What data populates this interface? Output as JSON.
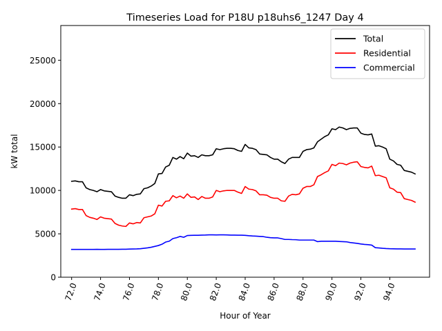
{
  "chart_data": {
    "type": "line",
    "title": "Timeseries Load for P18U p18uhs6_1247  Day 4",
    "xlabel": "Hour of Year",
    "ylabel": "kW total",
    "xlim": [
      71.25,
      96.75
    ],
    "ylim": [
      0,
      29000
    ],
    "grid": false,
    "legend_position": "top-right",
    "x_ticks": [
      72,
      74,
      76,
      78,
      80,
      82,
      84,
      86,
      88,
      90,
      92,
      94
    ],
    "x_tick_labels": [
      "72.0",
      "74.0",
      "76.0",
      "78.0",
      "80.0",
      "82.0",
      "84.0",
      "86.0",
      "88.0",
      "90.0",
      "92.0",
      "94.0"
    ],
    "y_ticks": [
      0,
      5000,
      10000,
      15000,
      20000,
      25000
    ],
    "y_tick_labels": [
      "0",
      "5000",
      "10000",
      "15000",
      "20000",
      "25000"
    ],
    "x": [
      72.0,
      72.25,
      72.5,
      72.75,
      73.0,
      73.25,
      73.5,
      73.75,
      74.0,
      74.25,
      74.5,
      74.75,
      75.0,
      75.25,
      75.5,
      75.75,
      76.0,
      76.25,
      76.5,
      76.75,
      77.0,
      77.25,
      77.5,
      77.75,
      78.0,
      78.25,
      78.5,
      78.75,
      79.0,
      79.25,
      79.5,
      79.75,
      80.0,
      80.25,
      80.5,
      80.75,
      81.0,
      81.25,
      81.5,
      81.75,
      82.0,
      82.25,
      82.5,
      82.75,
      83.0,
      83.25,
      83.5,
      83.75,
      84.0,
      84.25,
      84.5,
      84.75,
      85.0,
      85.25,
      85.5,
      85.75,
      86.0,
      86.25,
      86.5,
      86.75,
      87.0,
      87.25,
      87.5,
      87.75,
      88.0,
      88.25,
      88.5,
      88.75,
      89.0,
      89.25,
      89.5,
      89.75,
      90.0,
      90.25,
      90.5,
      90.75,
      91.0,
      91.25,
      91.5,
      91.75,
      92.0,
      92.25,
      92.5,
      92.75,
      93.0,
      93.25,
      93.5,
      93.75,
      94.0,
      94.25,
      94.5,
      94.75,
      95.0,
      95.25,
      95.5,
      95.75
    ],
    "series": [
      {
        "name": "Total",
        "color": "#000000",
        "values": [
          11050,
          11100,
          11000,
          11000,
          10300,
          10100,
          10000,
          9850,
          10100,
          9950,
          9900,
          9850,
          9350,
          9200,
          9100,
          9100,
          9500,
          9400,
          9550,
          9600,
          10200,
          10300,
          10500,
          10800,
          11900,
          11950,
          12700,
          12900,
          13800,
          13600,
          13900,
          13650,
          14300,
          13950,
          14000,
          13800,
          14100,
          14000,
          14000,
          14100,
          14800,
          14700,
          14800,
          14850,
          14850,
          14800,
          14600,
          14500,
          15300,
          14900,
          14850,
          14700,
          14200,
          14150,
          14100,
          13800,
          13600,
          13600,
          13300,
          13100,
          13600,
          13800,
          13800,
          13800,
          14500,
          14700,
          14750,
          14900,
          15600,
          15900,
          16200,
          16400,
          17100,
          17000,
          17300,
          17200,
          17000,
          17150,
          17200,
          17200,
          16600,
          16450,
          16400,
          16500,
          15100,
          15150,
          15000,
          14800,
          13600,
          13400,
          13000,
          12900,
          12300,
          12200,
          12100,
          11900
        ]
      },
      {
        "name": "Residential",
        "color": "#ff0000",
        "values": [
          7850,
          7900,
          7800,
          7800,
          7100,
          6900,
          6800,
          6650,
          6950,
          6800,
          6750,
          6700,
          6200,
          6000,
          5900,
          5850,
          6250,
          6150,
          6300,
          6250,
          6850,
          6950,
          7050,
          7300,
          8300,
          8200,
          8750,
          8800,
          9400,
          9150,
          9350,
          9100,
          9600,
          9200,
          9250,
          8950,
          9300,
          9100,
          9100,
          9250,
          10000,
          9850,
          9950,
          10000,
          10000,
          10000,
          9800,
          9650,
          10450,
          10150,
          10100,
          9950,
          9500,
          9500,
          9450,
          9200,
          9100,
          9100,
          8800,
          8750,
          9350,
          9550,
          9500,
          9600,
          10250,
          10450,
          10450,
          10650,
          11600,
          11800,
          12050,
          12250,
          13000,
          12850,
          13150,
          13100,
          12950,
          13150,
          13250,
          13300,
          12750,
          12650,
          12600,
          12800,
          11700,
          11750,
          11600,
          11450,
          10300,
          10150,
          9800,
          9750,
          9050,
          8950,
          8850,
          8650
        ]
      },
      {
        "name": "Commercial",
        "color": "#0000ff",
        "values": [
          3200,
          3200,
          3200,
          3200,
          3200,
          3200,
          3200,
          3210,
          3200,
          3200,
          3210,
          3210,
          3210,
          3210,
          3220,
          3220,
          3240,
          3250,
          3260,
          3280,
          3330,
          3380,
          3450,
          3550,
          3650,
          3800,
          4050,
          4150,
          4450,
          4550,
          4700,
          4600,
          4800,
          4820,
          4830,
          4830,
          4850,
          4860,
          4880,
          4880,
          4870,
          4880,
          4880,
          4870,
          4850,
          4850,
          4840,
          4840,
          4820,
          4780,
          4750,
          4730,
          4700,
          4680,
          4600,
          4550,
          4530,
          4530,
          4450,
          4350,
          4350,
          4330,
          4320,
          4280,
          4280,
          4280,
          4280,
          4280,
          4100,
          4150,
          4150,
          4150,
          4150,
          4150,
          4120,
          4100,
          4080,
          4000,
          3950,
          3900,
          3830,
          3780,
          3750,
          3700,
          3400,
          3370,
          3330,
          3300,
          3280,
          3270,
          3260,
          3260,
          3250,
          3250,
          3250,
          3250
        ]
      }
    ]
  }
}
